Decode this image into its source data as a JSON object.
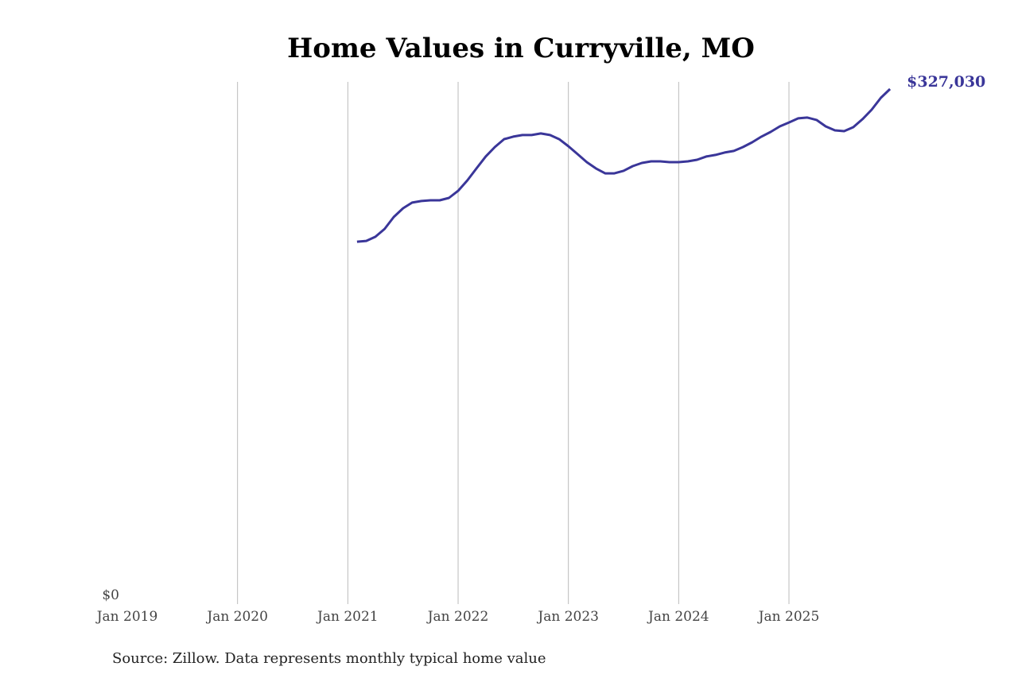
{
  "chart_data": {
    "type": "line",
    "title": "Home Values in Curryville, MO",
    "xlabel": "",
    "ylabel": "",
    "x_ticks": [
      "Jan 2019",
      "Jan 2020",
      "Jan 2021",
      "Jan 2022",
      "Jan 2023",
      "Jan 2024",
      "Jan 2025"
    ],
    "y_ticks": [
      "$0"
    ],
    "xlim": [
      "2019-01",
      "2026-01"
    ],
    "ylim": [
      0,
      327030
    ],
    "grid": "vertical",
    "line_color": "#3a3699",
    "end_label": "$327,030",
    "source": "Source: Zillow. Data represents monthly typical home value",
    "series": [
      {
        "name": "Typical home value",
        "start": "2021-02",
        "values": [
          230100,
          230600,
          233200,
          238200,
          245800,
          251300,
          254900,
          255900,
          256400,
          256400,
          257900,
          262400,
          269000,
          276600,
          284200,
          290200,
          295200,
          296800,
          297800,
          297800,
          298800,
          297800,
          295200,
          290700,
          285700,
          280600,
          276600,
          273500,
          273500,
          275100,
          278100,
          280100,
          281100,
          281100,
          280600,
          280600,
          281100,
          282100,
          284200,
          285200,
          286700,
          287700,
          290200,
          293200,
          296800,
          299800,
          303300,
          305800,
          308400,
          308900,
          307400,
          303300,
          300800,
          300300,
          302800,
          307900,
          313900,
          321500,
          327030
        ]
      }
    ]
  }
}
